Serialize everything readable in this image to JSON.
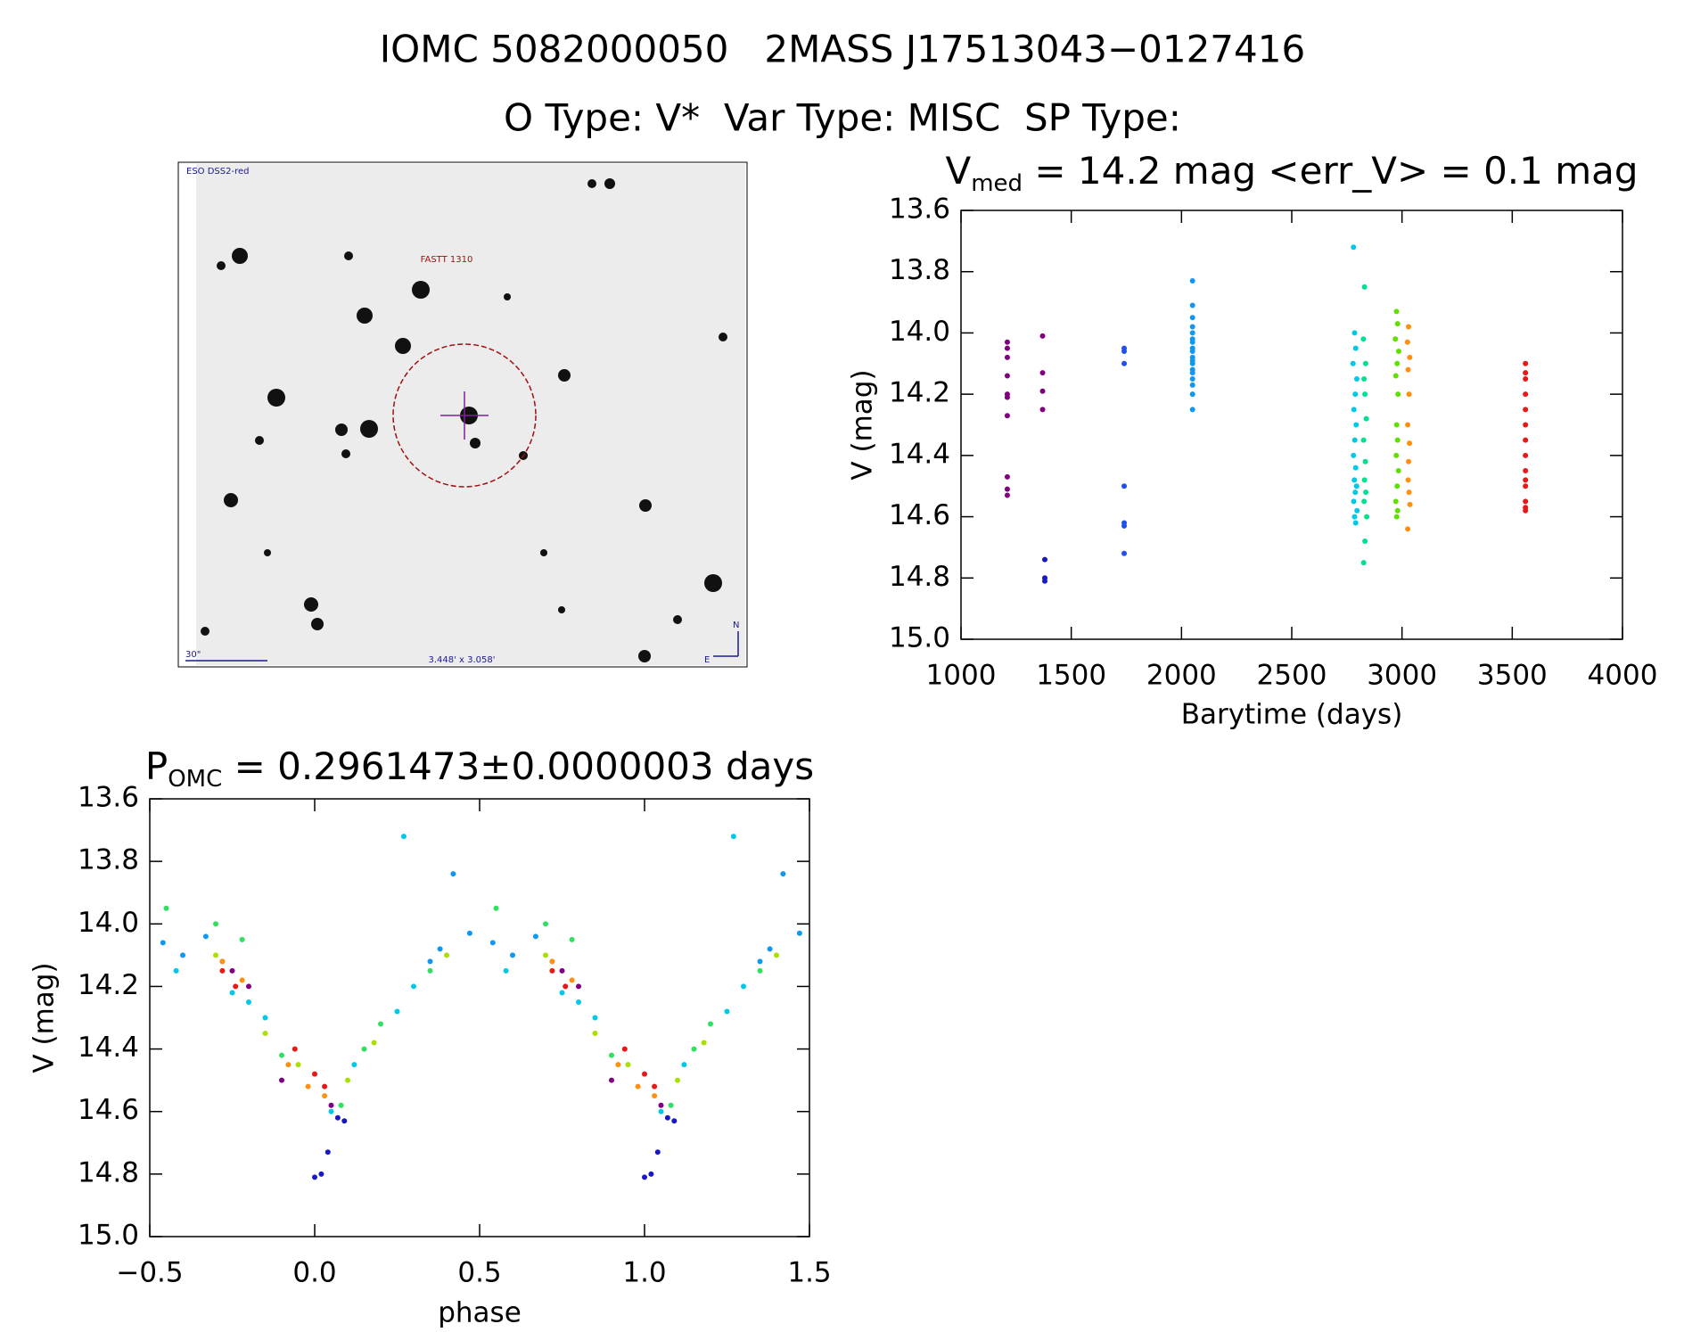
{
  "header": {
    "line1": "IOMC 5082000050   2MASS J17513043−0127416",
    "line2": "O Type: V*  Var Type: MISC  SP Type:"
  },
  "image": {
    "survey": "ESO DSS2-red",
    "label": "FASTT 1310",
    "scale": "30\"",
    "fov": "3.448' x 3.058'",
    "north": "N",
    "east": "E"
  },
  "chart_data": [
    {
      "type": "scatter",
      "title": [
        "V",
        "med",
        " = 14.2 mag <err_V> = 0.1 mag"
      ],
      "xlabel": "Barytime (days)",
      "ylabel": "V (mag)",
      "xlim": [
        1000,
        4000
      ],
      "xticks": [
        1000,
        1500,
        2000,
        2500,
        3000,
        3500,
        4000
      ],
      "ylim": [
        15.0,
        13.6
      ],
      "yticks": [
        {
          "value": 15,
          "label": "15.0"
        },
        14.8,
        14.6,
        14.4,
        14.2,
        {
          "value": 14,
          "label": "14.0"
        },
        13.8,
        13.6
      ],
      "series": [
        {
          "color": "#800080",
          "x": [
            1210,
            1210,
            1210,
            1210,
            1210,
            1210,
            1210,
            1210,
            1210,
            1210
          ],
          "values": [
            14.03,
            14.05,
            14.08,
            14.14,
            14.2,
            14.21,
            14.27,
            14.47,
            14.51,
            14.53
          ]
        },
        {
          "color": "#800080",
          "x": [
            1370,
            1370,
            1370,
            1370
          ],
          "values": [
            14.01,
            14.13,
            14.19,
            14.25
          ]
        },
        {
          "color": "#1818c8",
          "x": [
            1380,
            1380,
            1380
          ],
          "values": [
            14.74,
            14.8,
            14.81
          ]
        },
        {
          "color": "#2050e8",
          "x": [
            1740,
            1740,
            1740,
            1740,
            1740,
            1740,
            1740
          ],
          "values": [
            14.05,
            14.06,
            14.1,
            14.5,
            14.62,
            14.63,
            14.72
          ]
        },
        {
          "color": "#1098f0",
          "x": [
            2050,
            2050,
            2050,
            2050,
            2050,
            2050,
            2050,
            2050,
            2050,
            2050,
            2050,
            2050,
            2050,
            2050,
            2050,
            2050,
            2050,
            2050
          ],
          "values": [
            13.83,
            13.91,
            13.95,
            13.98,
            14.0,
            14.02,
            14.03,
            14.05,
            14.06,
            14.08,
            14.09,
            14.1,
            14.12,
            14.13,
            14.15,
            14.17,
            14.2,
            14.25
          ]
        },
        {
          "color": "#00c8e8",
          "x": [
            2780,
            2785,
            2790,
            2778,
            2795,
            2788,
            2782,
            2792,
            2786,
            2780,
            2790,
            2784,
            2794,
            2788,
            2781,
            2796,
            2785,
            2790
          ],
          "values": [
            13.72,
            14.0,
            14.05,
            14.1,
            14.15,
            14.2,
            14.25,
            14.3,
            14.35,
            14.4,
            14.44,
            14.48,
            14.5,
            14.52,
            14.55,
            14.58,
            14.6,
            14.62
          ]
        },
        {
          "color": "#00e090",
          "x": [
            2830,
            2825,
            2835,
            2828,
            2832,
            2838,
            2826,
            2834,
            2830,
            2836,
            2828,
            2840,
            2832,
            2826
          ],
          "values": [
            13.85,
            14.02,
            14.1,
            14.15,
            14.2,
            14.28,
            14.35,
            14.42,
            14.48,
            14.52,
            14.55,
            14.6,
            14.68,
            14.75
          ]
        },
        {
          "color": "#60e000",
          "x": [
            2975,
            2980,
            2970,
            2985,
            2978,
            2972,
            2982,
            2976,
            2980,
            2974,
            2984,
            2978,
            2972,
            2980,
            2976
          ],
          "values": [
            13.93,
            13.97,
            14.02,
            14.06,
            14.1,
            14.14,
            14.2,
            14.3,
            14.35,
            14.4,
            14.45,
            14.5,
            14.55,
            14.58,
            14.6
          ]
        },
        {
          "color": "#ff9010",
          "x": [
            3030,
            3025,
            3035,
            3028,
            3032,
            3026,
            3034,
            3030,
            3028,
            3032,
            3036,
            3026
          ],
          "values": [
            13.98,
            14.03,
            14.08,
            14.12,
            14.2,
            14.3,
            14.36,
            14.42,
            14.48,
            14.52,
            14.56,
            14.64
          ]
        },
        {
          "color": "#e81818",
          "x": [
            3560,
            3560,
            3560,
            3560,
            3560,
            3560,
            3560,
            3560,
            3560,
            3560,
            3560,
            3560,
            3560,
            3560
          ],
          "values": [
            14.1,
            14.13,
            14.15,
            14.2,
            14.25,
            14.3,
            14.35,
            14.4,
            14.45,
            14.48,
            14.5,
            14.55,
            14.57,
            14.58
          ]
        }
      ]
    },
    {
      "type": "scatter",
      "title": [
        "P",
        "OMC",
        " = 0.2961473±0.0000003 days"
      ],
      "xlabel": "phase",
      "ylabel": "V (mag)",
      "xlim": [
        -0.5,
        1.5
      ],
      "xticks": [
        {
          "value": -0.5,
          "label": "−0.5"
        },
        {
          "value": 0,
          "label": "0.0"
        },
        0.5,
        {
          "value": 1,
          "label": "1.0"
        },
        1.5
      ],
      "ylim": [
        15.0,
        13.6
      ],
      "yticks": [
        {
          "value": 15,
          "label": "15.0"
        },
        14.8,
        14.6,
        14.4,
        14.2,
        {
          "value": 14,
          "label": "14.0"
        },
        13.8,
        13.6
      ],
      "series": [
        {
          "color": "#1098f0",
          "x": [
            -0.46,
            -0.4,
            -0.33,
            -0.28,
            0.38,
            0.42,
            0.47,
            0.35,
            0.54,
            0.6,
            0.67,
            0.72,
            1.38,
            1.42,
            1.47,
            1.35
          ],
          "values": [
            14.06,
            14.1,
            14.04,
            14.12,
            14.08,
            13.84,
            14.03,
            14.12,
            14.06,
            14.1,
            14.04,
            14.12,
            14.08,
            13.84,
            14.03,
            14.12
          ]
        },
        {
          "color": "#00c8e8",
          "x": [
            -0.2,
            -0.15,
            0.12,
            -0.42,
            0.25,
            0.3,
            -0.25,
            0.05,
            0.27,
            0.8,
            0.85,
            1.12,
            0.58,
            1.25,
            1.3,
            0.75,
            1.05,
            1.27
          ],
          "values": [
            14.25,
            14.3,
            14.45,
            14.15,
            14.28,
            14.2,
            14.22,
            14.6,
            13.72,
            14.25,
            14.3,
            14.45,
            14.15,
            14.28,
            14.2,
            14.22,
            14.6,
            13.72
          ]
        },
        {
          "color": "#30e060",
          "x": [
            -0.3,
            -0.22,
            0.15,
            0.2,
            0.35,
            -0.1,
            0.08,
            -0.45,
            0.7,
            0.78,
            1.15,
            1.2,
            1.35,
            0.9,
            1.08,
            0.55
          ],
          "values": [
            14.0,
            14.05,
            14.4,
            14.32,
            14.15,
            14.42,
            14.58,
            13.95,
            14.0,
            14.05,
            14.4,
            14.32,
            14.15,
            14.42,
            14.58,
            13.95
          ]
        },
        {
          "color": "#a8e000",
          "x": [
            -0.3,
            0.1,
            0.18,
            -0.15,
            0.4,
            -0.05,
            0.7,
            1.1,
            1.18,
            0.85,
            1.4,
            0.95
          ],
          "values": [
            14.1,
            14.5,
            14.38,
            14.35,
            14.1,
            14.45,
            14.1,
            14.5,
            14.38,
            14.35,
            14.1,
            14.45
          ]
        },
        {
          "color": "#ff9010",
          "x": [
            -0.28,
            -0.08,
            -0.02,
            0.03,
            -0.22,
            0.72,
            0.92,
            0.98,
            1.03,
            0.78
          ],
          "values": [
            14.12,
            14.45,
            14.52,
            14.55,
            14.18,
            14.12,
            14.45,
            14.52,
            14.55,
            14.18
          ]
        },
        {
          "color": "#e81818",
          "x": [
            -0.28,
            -0.24,
            -0.06,
            0.0,
            0.03,
            0.72,
            0.76,
            0.94,
            1.0,
            1.03
          ],
          "values": [
            14.15,
            14.2,
            14.4,
            14.48,
            14.52,
            14.15,
            14.2,
            14.4,
            14.48,
            14.52
          ]
        },
        {
          "color": "#1818c8",
          "x": [
            0.0,
            0.02,
            0.04,
            0.09,
            0.07,
            1.0,
            1.02,
            1.04,
            1.09,
            1.07
          ],
          "values": [
            14.81,
            14.8,
            14.73,
            14.63,
            14.62,
            14.81,
            14.8,
            14.73,
            14.63,
            14.62
          ]
        },
        {
          "color": "#800080",
          "x": [
            -0.2,
            -0.25,
            0.05,
            -0.1,
            0.8,
            0.75,
            1.05,
            0.9
          ],
          "values": [
            14.2,
            14.15,
            14.58,
            14.5,
            14.2,
            14.15,
            14.58,
            14.5
          ]
        }
      ]
    }
  ]
}
